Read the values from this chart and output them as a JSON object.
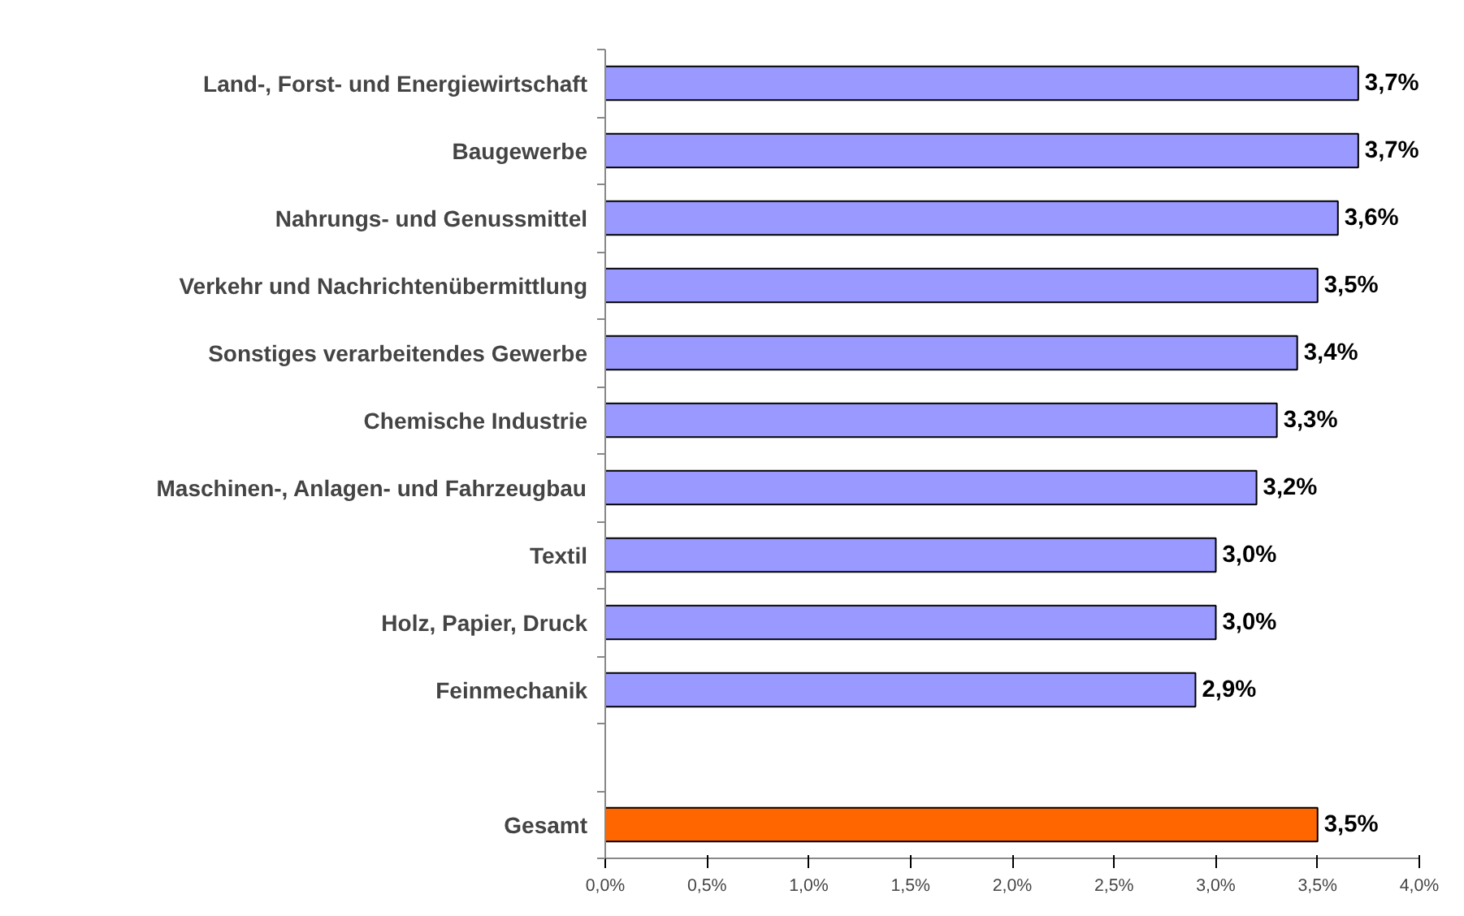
{
  "chart_data": {
    "type": "bar",
    "orientation": "horizontal",
    "categories": [
      "Land-, Forst- und Energiewirtschaft",
      "Baugewerbe",
      "Nahrungs- und Genussmittel",
      "Verkehr und Nachrichtenübermittlung",
      "Sonstiges verarbeitendes Gewerbe",
      "Chemische Industrie",
      "Maschinen-, Anlagen- und Fahrzeugbau",
      "Textil",
      "Holz, Papier, Druck",
      "Feinmechanik",
      null,
      "Gesamt"
    ],
    "values": [
      3.7,
      3.7,
      3.6,
      3.5,
      3.4,
      3.3,
      3.2,
      3.0,
      3.0,
      2.9,
      null,
      3.5
    ],
    "colors": [
      "#9999ff",
      "#9999ff",
      "#9999ff",
      "#9999ff",
      "#9999ff",
      "#9999ff",
      "#9999ff",
      "#9999ff",
      "#9999ff",
      "#9999ff",
      "#9999ff",
      "#ff6600"
    ],
    "value_labels": [
      "3,7%",
      "3,7%",
      "3,6%",
      "3,5%",
      "3,4%",
      "3,3%",
      "3,2%",
      "3,0%",
      "3,0%",
      "2,9%",
      null,
      "3,5%"
    ],
    "xlim": [
      0,
      4
    ],
    "xticks": [
      {
        "value": 0,
        "label": "0,0%"
      },
      {
        "value": 0.5,
        "label": "0,5%"
      },
      {
        "value": 1,
        "label": "1,0%"
      },
      {
        "value": 1.5,
        "label": "1,5%"
      },
      {
        "value": 2,
        "label": "2,0%"
      },
      {
        "value": 2.5,
        "label": "2,5%"
      },
      {
        "value": 3,
        "label": "3,0%"
      },
      {
        "value": 3.5,
        "label": "3,5%"
      },
      {
        "value": 4,
        "label": "4,0%"
      }
    ],
    "grid": false
  }
}
